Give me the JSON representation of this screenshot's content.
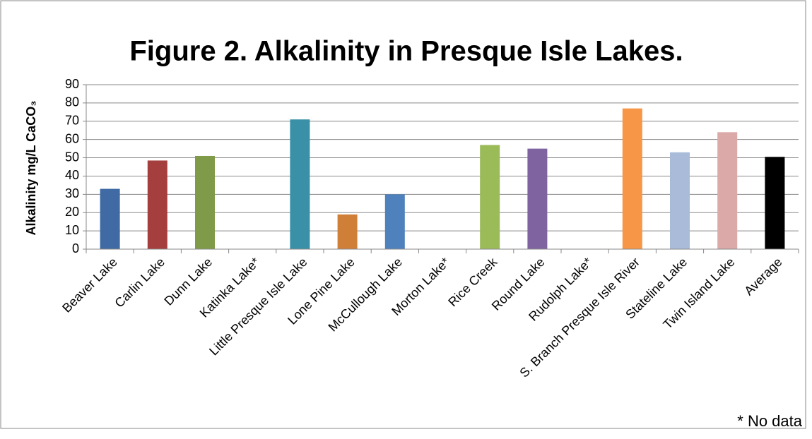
{
  "chart_data": {
    "type": "bar",
    "title": "Figure 2. Alkalinity in Presque Isle Lakes.",
    "y_label": "Alkalinity mg/L CaCO₃",
    "annotation": "* No data",
    "categories": [
      "Beaver Lake",
      "Carlin Lake",
      "Dunn Lake",
      "Katinka Lake*",
      "Little Presque Isle Lake",
      "Lone Pine Lake",
      "McCullough Lake",
      "Morton Lake*",
      "Rice Creek",
      "Round Lake",
      "Rudolph Lake*",
      "S. Branch Presque Isle River",
      "Stateline Lake",
      "Twin Island Lake",
      "Average"
    ],
    "values": [
      33,
      48.5,
      51,
      null,
      71,
      19,
      30,
      null,
      57,
      55,
      null,
      77,
      53,
      64,
      50.5
    ],
    "colors": [
      "#3f6aa3",
      "#a43f3e",
      "#7f9a48",
      null,
      "#3a91a7",
      "#d07f39",
      "#4f82bd",
      null,
      "#9bbb59",
      "#7f63a1",
      null,
      "#f79646",
      "#a9bbd9",
      "#dba9a8",
      "#000000"
    ],
    "ylim": [
      0,
      90
    ],
    "yticks": [
      0,
      10,
      20,
      30,
      40,
      50,
      60,
      70,
      80,
      90
    ],
    "grid": true
  }
}
